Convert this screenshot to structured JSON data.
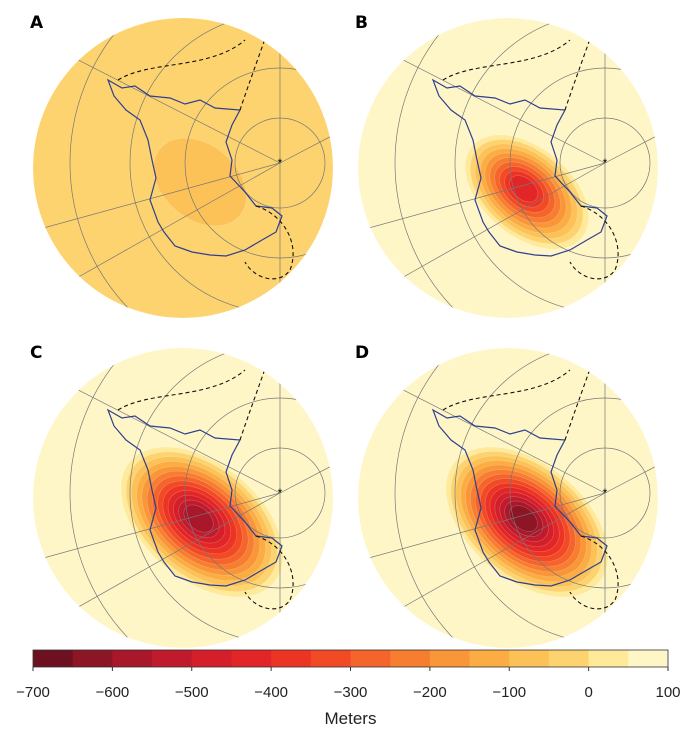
{
  "panels": [
    {
      "label": "A"
    },
    {
      "label": "B"
    },
    {
      "label": "C"
    },
    {
      "label": "D"
    }
  ],
  "colorbar": {
    "label": "Meters",
    "lim": [
      -700,
      100
    ],
    "ticks": [
      {
        "value": -700,
        "label": "−700"
      },
      {
        "value": -600,
        "label": "−600"
      },
      {
        "value": -500,
        "label": "−500"
      },
      {
        "value": -400,
        "label": "−400"
      },
      {
        "value": -300,
        "label": "−300"
      },
      {
        "value": -200,
        "label": "−200"
      },
      {
        "value": -100,
        "label": "−100"
      },
      0,
      100
    ],
    "colors": [
      "#6d1020",
      "#8c1526",
      "#a8172a",
      "#c01b2c",
      "#d41f2a",
      "#e22627",
      "#ec3424",
      "#f14a25",
      "#f5642a",
      "#f77d30",
      "#f99638",
      "#fbad44",
      "#fcc157",
      "#fdd36f",
      "#feea9a",
      "#fff6c8"
    ]
  }
}
